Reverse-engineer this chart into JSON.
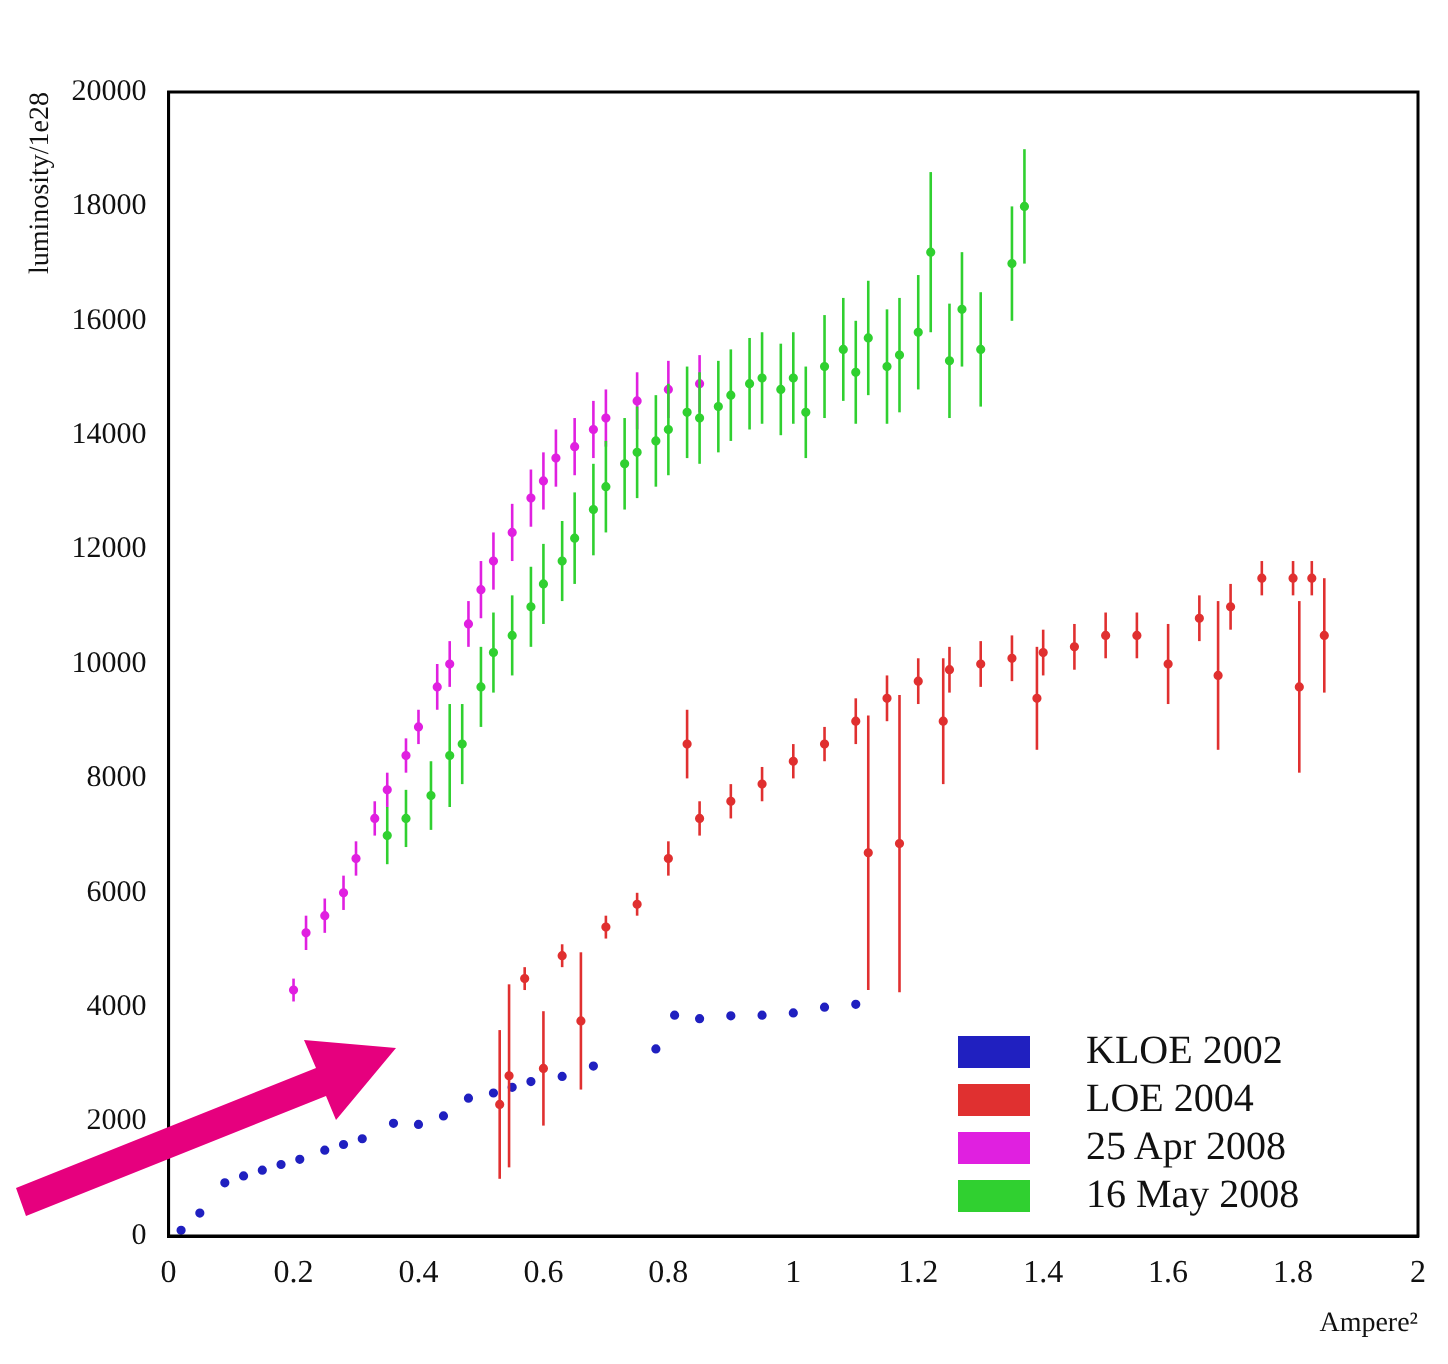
{
  "chart_data": {
    "type": "scatter",
    "xlabel": "Ampere²",
    "ylabel": "luminosity/1e28",
    "xlim": [
      0,
      2
    ],
    "xticks": [
      0,
      0.2,
      0.4,
      0.6,
      0.8,
      1,
      1.2,
      1.4,
      1.6,
      1.8,
      2
    ],
    "ylim": [
      0,
      20000
    ],
    "yticks": [
      0,
      2000,
      4000,
      6000,
      8000,
      10000,
      12000,
      14000,
      16000,
      18000,
      20000
    ],
    "grid": false,
    "legend": "bottom right",
    "marker": "circle",
    "series": [
      {
        "name": "KLOE 2002",
        "color": "#2020c0",
        "x": [
          0.02,
          0.05,
          0.09,
          0.12,
          0.15,
          0.18,
          0.21,
          0.25,
          0.28,
          0.31,
          0.36,
          0.4,
          0.44,
          0.48,
          0.52,
          0.55,
          0.58,
          0.63,
          0.68,
          0.78,
          0.81,
          0.85,
          0.9,
          0.95,
          1.0,
          1.05,
          1.1
        ],
        "values": [
          100,
          400,
          930,
          1050,
          1150,
          1250,
          1340,
          1500,
          1600,
          1700,
          1970,
          1950,
          2100,
          2410,
          2500,
          2600,
          2700,
          2790,
          2970,
          3270,
          3860,
          3800,
          3850,
          3860,
          3900,
          4000,
          4050
        ]
      },
      {
        "name": "LOE 2004",
        "color": "#e03030",
        "x": [
          0.53,
          0.545,
          0.57,
          0.6,
          0.63,
          0.66,
          0.7,
          0.75,
          0.8,
          0.83,
          0.85,
          0.9,
          0.95,
          1.0,
          1.05,
          1.1,
          1.12,
          1.15,
          1.17,
          1.2,
          1.24,
          1.25,
          1.3,
          1.35,
          1.39,
          1.4,
          1.45,
          1.5,
          1.55,
          1.6,
          1.65,
          1.68,
          1.7,
          1.75,
          1.8,
          1.81,
          1.83,
          1.85
        ],
        "values": [
          2300,
          2800,
          4500,
          2930,
          4900,
          3760,
          5400,
          5800,
          6600,
          8600,
          7300,
          7600,
          7900,
          8300,
          8600,
          9000,
          6700,
          9400,
          6860,
          9700,
          9000,
          9900,
          10000,
          10100,
          9400,
          10200,
          10300,
          10500,
          10500,
          10000,
          10800,
          9800,
          11000,
          11500,
          11500,
          9600,
          11500,
          10500
        ],
        "errors": [
          1300,
          1600,
          200,
          1000,
          200,
          1200,
          200,
          200,
          300,
          600,
          300,
          300,
          300,
          300,
          300,
          400,
          2400,
          400,
          2600,
          400,
          1100,
          400,
          400,
          400,
          900,
          400,
          400,
          400,
          400,
          700,
          400,
          1300,
          400,
          300,
          300,
          1500,
          300,
          1000
        ]
      },
      {
        "name": "25 Apr 2008",
        "color": "#e020e0",
        "x": [
          0.2,
          0.22,
          0.25,
          0.28,
          0.3,
          0.33,
          0.35,
          0.38,
          0.4,
          0.43,
          0.45,
          0.48,
          0.5,
          0.52,
          0.55,
          0.58,
          0.6,
          0.62,
          0.65,
          0.68,
          0.7,
          0.75,
          0.8,
          0.85
        ],
        "values": [
          4300,
          5300,
          5600,
          6000,
          6600,
          7300,
          7800,
          8400,
          8900,
          9600,
          10000,
          10700,
          11300,
          11800,
          12300,
          12900,
          13200,
          13600,
          13800,
          14100,
          14300,
          14600,
          14800,
          14900
        ],
        "errors": [
          200,
          300,
          300,
          300,
          300,
          300,
          300,
          300,
          300,
          400,
          400,
          400,
          500,
          500,
          500,
          500,
          500,
          500,
          500,
          500,
          500,
          500,
          500,
          500
        ]
      },
      {
        "name": "16 May 2008",
        "color": "#30d030",
        "x": [
          0.35,
          0.38,
          0.42,
          0.45,
          0.47,
          0.5,
          0.52,
          0.55,
          0.58,
          0.6,
          0.63,
          0.65,
          0.68,
          0.7,
          0.73,
          0.75,
          0.78,
          0.8,
          0.83,
          0.85,
          0.88,
          0.9,
          0.93,
          0.95,
          0.98,
          1.0,
          1.02,
          1.05,
          1.08,
          1.1,
          1.12,
          1.15,
          1.17,
          1.2,
          1.22,
          1.25,
          1.27,
          1.3,
          1.35,
          1.37
        ],
        "values": [
          7000,
          7300,
          7700,
          8400,
          8600,
          9600,
          10200,
          10500,
          11000,
          11400,
          11800,
          12200,
          12700,
          13100,
          13500,
          13700,
          13900,
          14100,
          14400,
          14300,
          14500,
          14700,
          14900,
          15000,
          14800,
          15000,
          14400,
          15200,
          15500,
          15100,
          15700,
          15200,
          15400,
          15800,
          17200,
          15300,
          16200,
          15500,
          17000,
          18000
        ],
        "errors": [
          500,
          500,
          600,
          900,
          700,
          700,
          700,
          700,
          700,
          700,
          700,
          800,
          800,
          800,
          800,
          800,
          800,
          800,
          800,
          800,
          800,
          800,
          800,
          800,
          800,
          800,
          800,
          900,
          900,
          900,
          1000,
          1000,
          1000,
          1000,
          1400,
          1000,
          1000,
          1000,
          1000,
          1000
        ]
      }
    ]
  }
}
